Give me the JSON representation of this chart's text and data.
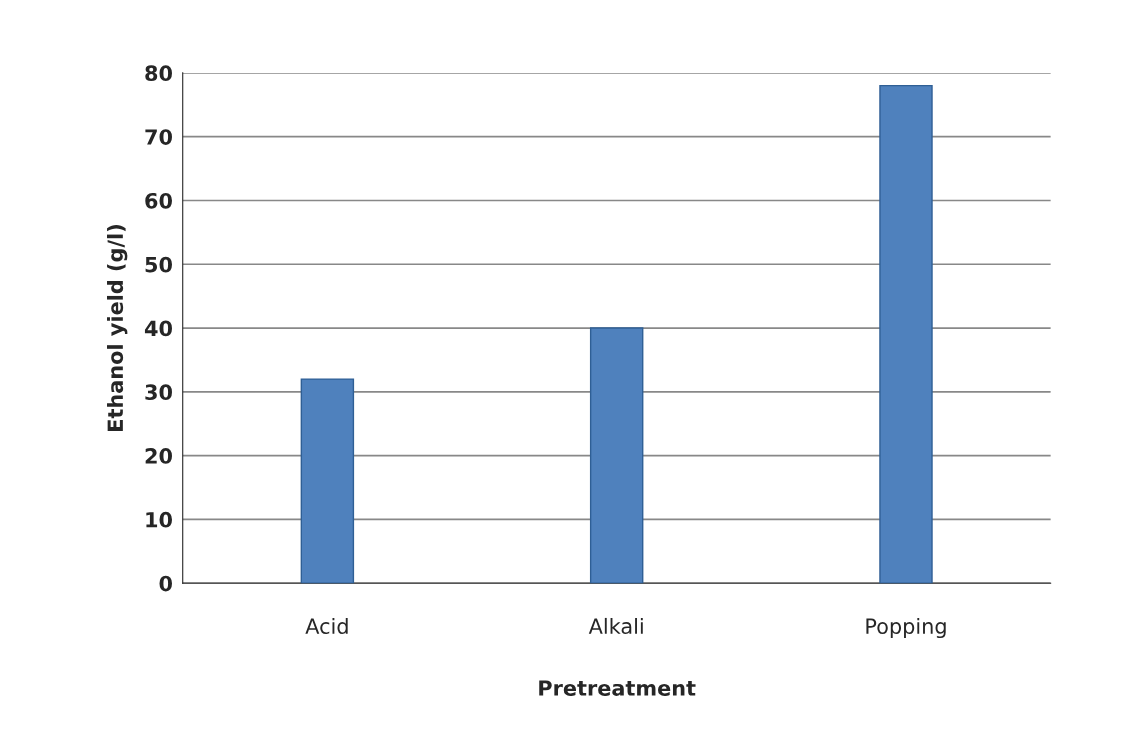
{
  "chart_data": {
    "type": "bar",
    "xlabel": "Pretreatment",
    "ylabel": "Ethanol yield (g/l)",
    "categories": [
      "Acid",
      "Alkali",
      "Popping"
    ],
    "values": [
      32,
      40,
      78
    ],
    "color": "#4f81bd",
    "ylim": [
      0,
      80
    ],
    "yticks": [
      0,
      10,
      20,
      30,
      40,
      50,
      60,
      70,
      80
    ],
    "grid": "y"
  }
}
